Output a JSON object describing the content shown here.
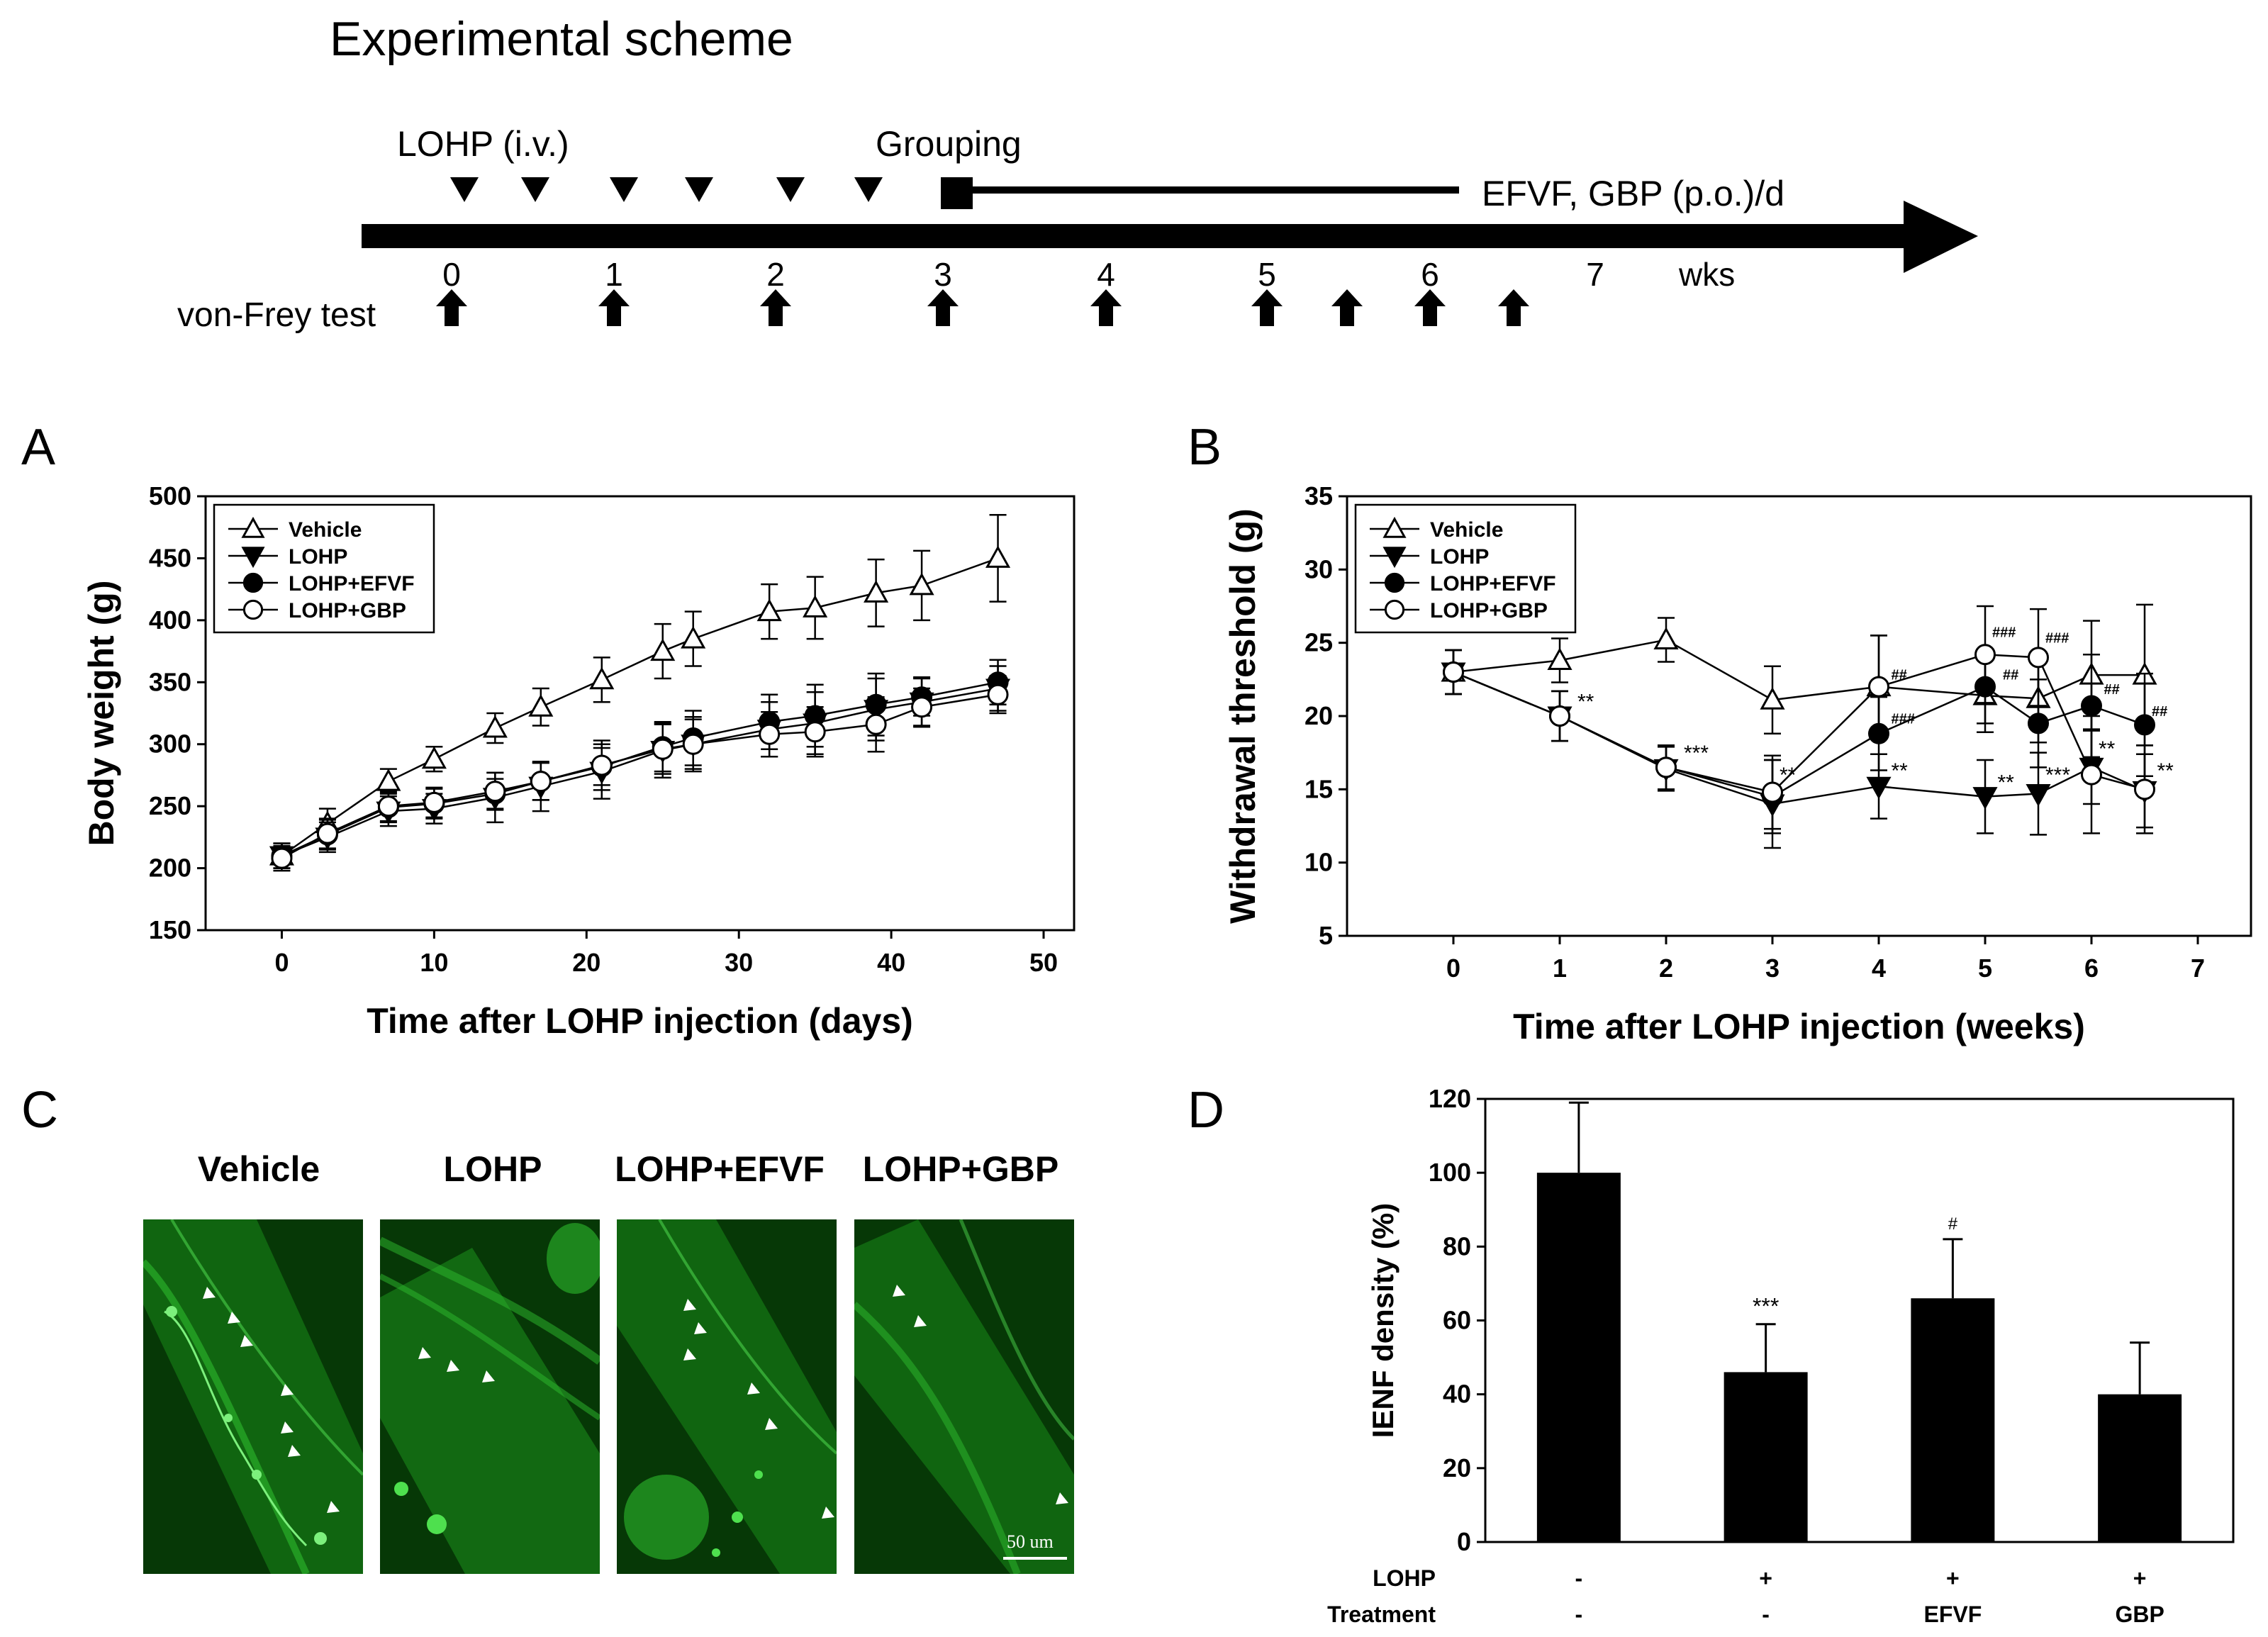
{
  "scheme": {
    "title": "Experimental scheme",
    "lohp_label": "LOHP (i.v.)",
    "grouping_label": "Grouping",
    "dosing_label": "EFVF, GBP (p.o.)/d",
    "week_labels": [
      "0",
      "1",
      "2",
      "3",
      "4",
      "5",
      "6",
      "7"
    ],
    "weeks_unit": "wks",
    "vonfrey_label": "von-Frey test"
  },
  "panels": {
    "A": "A",
    "B": "B",
    "C": "C",
    "D": "D"
  },
  "legend": [
    "Vehicle",
    "LOHP",
    "LOHP+EFVF",
    "LOHP+GBP"
  ],
  "chart_data": [
    {
      "id": "A",
      "type": "line",
      "xlabel": "Time after LOHP injection (days)",
      "ylabel": "Body weight (g)",
      "xlim": [
        -5,
        52
      ],
      "ylim": [
        150,
        500
      ],
      "xticks": [
        0,
        10,
        20,
        30,
        40,
        50
      ],
      "yticks": [
        150,
        200,
        250,
        300,
        350,
        400,
        450,
        500
      ],
      "series": [
        {
          "name": "Vehicle",
          "marker": "triangle-up-open",
          "x": [
            0,
            3,
            7,
            10,
            14,
            17,
            21,
            25,
            27,
            32,
            35,
            39,
            42,
            47
          ],
          "y": [
            210,
            236,
            270,
            288,
            313,
            330,
            352,
            375,
            385,
            407,
            410,
            422,
            428,
            450
          ],
          "err": [
            10,
            12,
            10,
            10,
            12,
            15,
            18,
            22,
            22,
            22,
            25,
            27,
            28,
            35
          ]
        },
        {
          "name": "LOHP",
          "marker": "triangle-down-filled",
          "x": [
            0,
            3,
            7,
            10,
            14,
            17,
            21,
            25,
            27,
            32,
            35,
            39,
            42,
            47
          ],
          "y": [
            210,
            225,
            246,
            248,
            257,
            266,
            278,
            295,
            300,
            312,
            317,
            328,
            334,
            345
          ],
          "err": [
            10,
            12,
            12,
            12,
            20,
            20,
            22,
            22,
            22,
            22,
            25,
            25,
            20,
            18
          ]
        },
        {
          "name": "LOHP+EFVF",
          "marker": "circle-filled",
          "x": [
            0,
            3,
            7,
            10,
            14,
            17,
            21,
            25,
            27,
            32,
            35,
            39,
            42,
            47
          ],
          "y": [
            210,
            227,
            249,
            252,
            260,
            270,
            282,
            298,
            305,
            318,
            323,
            332,
            338,
            350
          ],
          "err": [
            10,
            12,
            12,
            12,
            12,
            15,
            15,
            20,
            22,
            22,
            25,
            25,
            15,
            18
          ]
        },
        {
          "name": "LOHP+GBP",
          "marker": "circle-open",
          "x": [
            0,
            3,
            7,
            10,
            14,
            17,
            21,
            25,
            27,
            32,
            35,
            39,
            42,
            47
          ],
          "y": [
            208,
            228,
            250,
            253,
            262,
            270,
            283,
            296,
            300,
            308,
            310,
            316,
            330,
            340
          ],
          "err": [
            10,
            12,
            12,
            12,
            15,
            15,
            20,
            20,
            20,
            18,
            20,
            22,
            15,
            15
          ]
        }
      ]
    },
    {
      "id": "B",
      "type": "line",
      "xlabel": "Time after LOHP injection (weeks)",
      "ylabel": "Withdrawal threshold (g)",
      "xlim": [
        -1,
        7.5
      ],
      "ylim": [
        5,
        35
      ],
      "xticks": [
        0,
        1,
        2,
        3,
        4,
        5,
        6,
        7
      ],
      "yticks": [
        5,
        10,
        15,
        20,
        25,
        30,
        35
      ],
      "series": [
        {
          "name": "Vehicle",
          "marker": "triangle-up-open",
          "x": [
            0,
            1,
            2,
            3,
            4,
            5,
            5.5,
            6,
            6.5
          ],
          "y": [
            23.0,
            23.8,
            25.2,
            21.1,
            22.0,
            21.4,
            21.2,
            22.8,
            22.8
          ],
          "err": [
            1.5,
            1.5,
            1.5,
            2.3,
            3.5,
            2.5,
            3.0,
            3.7,
            4.8
          ]
        },
        {
          "name": "LOHP",
          "marker": "triangle-down-filled",
          "x": [
            0,
            1,
            2,
            3,
            4,
            5,
            5.5,
            6,
            6.5
          ],
          "y": [
            23.0,
            20.0,
            16.4,
            14.0,
            15.2,
            14.5,
            14.7,
            16.5,
            14.9
          ],
          "err": [
            1.5,
            1.7,
            1.5,
            3.0,
            2.2,
            2.5,
            2.8,
            2.5,
            2.5
          ]
        },
        {
          "name": "LOHP+EFVF",
          "marker": "circle-filled",
          "x": [
            0,
            1,
            2,
            3,
            4,
            5,
            5.5,
            6,
            6.5
          ],
          "y": [
            23.0,
            20.0,
            16.5,
            14.5,
            18.8,
            22.0,
            19.5,
            20.7,
            19.4
          ],
          "err": [
            1.5,
            1.7,
            1.5,
            2.5,
            2.5,
            2.5,
            3.0,
            3.5,
            3.5
          ]
        },
        {
          "name": "LOHP+GBP",
          "marker": "circle-open",
          "x": [
            0,
            1,
            2,
            3,
            4,
            5,
            5.5,
            6,
            6.5
          ],
          "y": [
            23.0,
            20.0,
            16.5,
            14.8,
            22.0,
            24.2,
            24.0,
            16.0,
            15.0
          ],
          "err": [
            1.5,
            1.7,
            1.5,
            2.5,
            3.5,
            3.3,
            3.3,
            4.0,
            3.0
          ]
        }
      ],
      "annotations": [
        {
          "x": 1.1,
          "y": 20.5,
          "text": "**"
        },
        {
          "x": 2.1,
          "y": 17.0,
          "text": "***"
        },
        {
          "x": 3.0,
          "y": 15.5,
          "text": "**"
        },
        {
          "x": 4.05,
          "y": 15.8,
          "text": "**"
        },
        {
          "x": 4.05,
          "y": 19.5,
          "text": "###"
        },
        {
          "x": 4.05,
          "y": 22.5,
          "text": "##"
        },
        {
          "x": 5.05,
          "y": 15.0,
          "text": "**"
        },
        {
          "x": 5.5,
          "y": 15.5,
          "text": "***"
        },
        {
          "x": 5.0,
          "y": 25.4,
          "text": "###"
        },
        {
          "x": 5.1,
          "y": 22.5,
          "text": "##"
        },
        {
          "x": 5.5,
          "y": 25.0,
          "text": "###"
        },
        {
          "x": 6.05,
          "y": 21.5,
          "text": "##"
        },
        {
          "x": 6.0,
          "y": 17.3,
          "text": "**"
        },
        {
          "x": 6.5,
          "y": 20.0,
          "text": "##"
        },
        {
          "x": 6.55,
          "y": 15.8,
          "text": "**"
        }
      ]
    },
    {
      "id": "D",
      "type": "bar",
      "ylabel": "IENF density (%)",
      "ylim": [
        0,
        120
      ],
      "yticks": [
        0,
        20,
        40,
        60,
        80,
        100,
        120
      ],
      "categories": [
        "Vehicle",
        "LOHP",
        "LOHP+EFVF",
        "LOHP+GBP"
      ],
      "values": [
        100,
        46,
        66,
        40
      ],
      "err": [
        19,
        13,
        16,
        14
      ],
      "bar_labels": [
        "",
        "***",
        "#",
        ""
      ],
      "row_labels": [
        "LOHP",
        "Treatment"
      ],
      "lohp_row": [
        "-",
        "+",
        "+",
        "+"
      ],
      "treatment_row": [
        "-",
        "-",
        "EFVF",
        "GBP"
      ]
    }
  ],
  "micrographs": {
    "labels": [
      "Vehicle",
      "LOHP",
      "LOHP+EFVF",
      "LOHP+GBP"
    ],
    "scalebar": "50 um",
    "color": "#1fa51f"
  }
}
